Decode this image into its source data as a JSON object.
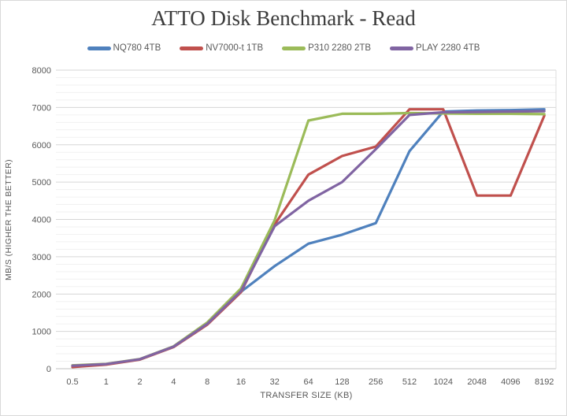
{
  "window": {
    "background": "#ffffff",
    "border_color": "#d9d9d9"
  },
  "chart_data": {
    "type": "line",
    "title": "ATTO Disk Benchmark - Read",
    "xlabel": "TRANSFER SIZE (KB)",
    "ylabel": "MB/S (HIGHER THE BETTER)",
    "categories": [
      "0.5",
      "1",
      "2",
      "4",
      "8",
      "16",
      "32",
      "64",
      "128",
      "256",
      "512",
      "1024",
      "2048",
      "4096",
      "8192"
    ],
    "ylim": [
      0,
      8000
    ],
    "y_major_step": 1000,
    "y_minor_step": 200,
    "grid": true,
    "legend_position": "top",
    "colors": {
      "major_gridline": "#d6d6d6",
      "minor_gridline": "#f1f1f1",
      "baseline": "#bfbfbf",
      "plot_right_edge": "#dcdcdc",
      "tick_text": "#595959",
      "title_text": "#3b3b3b"
    },
    "series": [
      {
        "name": "NQ780 4TB",
        "color": "#4F81BD",
        "values": [
          85,
          120,
          250,
          590,
          1190,
          2060,
          2750,
          3350,
          3590,
          3900,
          5830,
          6890,
          6920,
          6930,
          6950
        ]
      },
      {
        "name": "NV7000-t 1TB",
        "color": "#C0504D",
        "values": [
          45,
          110,
          245,
          580,
          1180,
          2050,
          3870,
          5200,
          5700,
          5950,
          6950,
          6950,
          4640,
          4640,
          6780
        ]
      },
      {
        "name": "P310 2280 2TB",
        "color": "#9BBB59",
        "values": [
          90,
          130,
          260,
          600,
          1240,
          2150,
          3980,
          6650,
          6830,
          6830,
          6850,
          6840,
          6830,
          6830,
          6820
        ]
      },
      {
        "name": "PLAY 2280 4TB",
        "color": "#8064A2",
        "values": [
          80,
          125,
          255,
          590,
          1200,
          2080,
          3820,
          4500,
          5000,
          5880,
          6800,
          6870,
          6880,
          6890,
          6900
        ]
      }
    ]
  }
}
